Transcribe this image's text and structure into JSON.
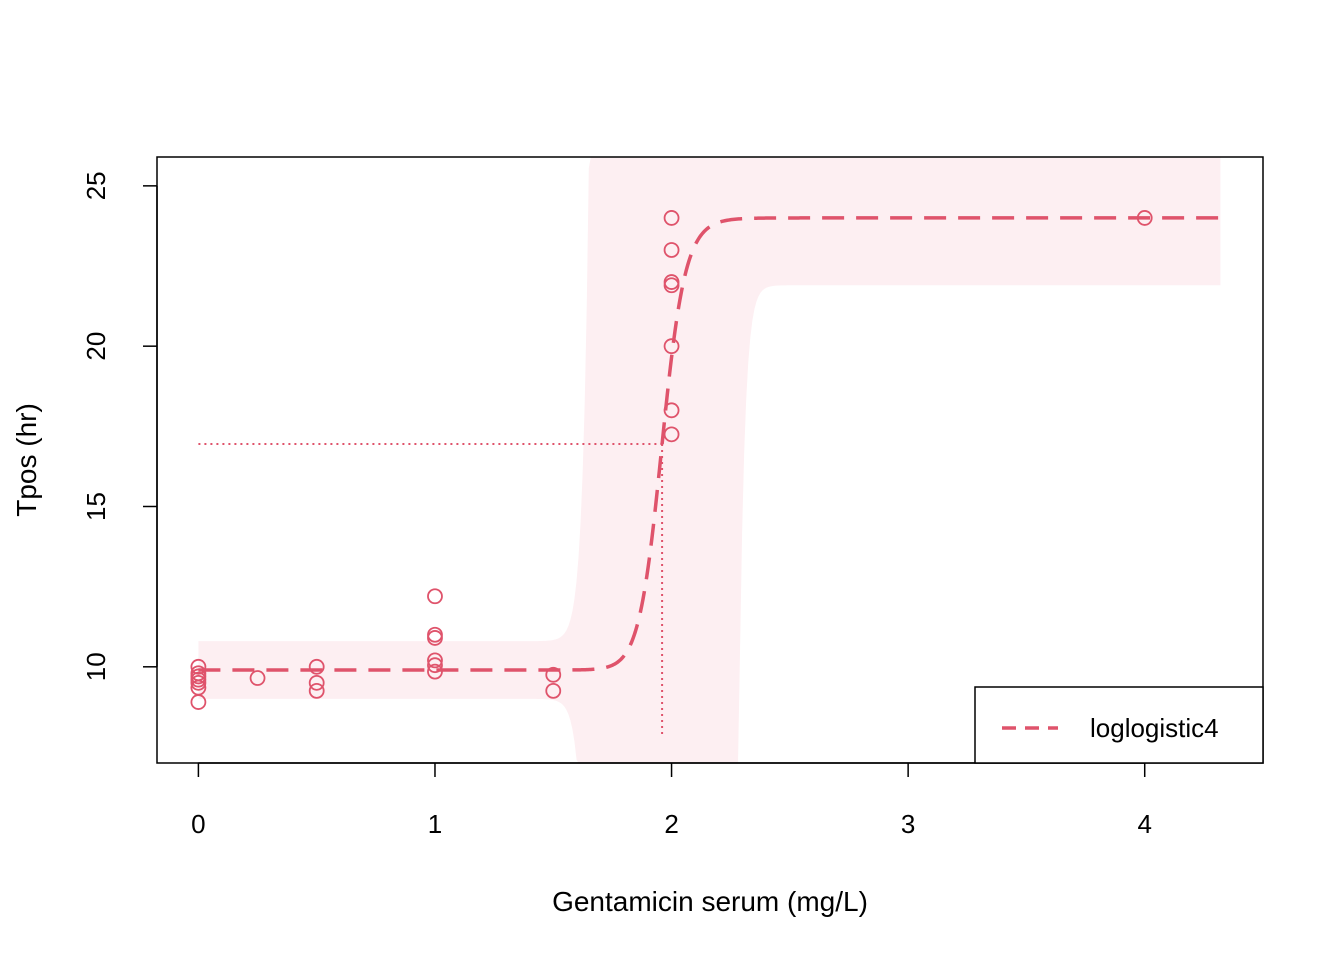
{
  "chart_data": {
    "type": "scatter",
    "title": "",
    "xlabel": "Gentamicin serum (mg/L)",
    "ylabel": "Tpos (hr)",
    "xlim": [
      -0.175,
      4.5
    ],
    "ylim": [
      7.0,
      25.9
    ],
    "x_ticks": [
      0,
      1,
      2,
      3,
      4
    ],
    "y_ticks": [
      10,
      15,
      20,
      25
    ],
    "color": "#DF536B",
    "band_color": "#FDEFF2",
    "points": [
      {
        "x": 0,
        "y": 10.0
      },
      {
        "x": 0,
        "y": 9.8
      },
      {
        "x": 0,
        "y": 9.7
      },
      {
        "x": 0,
        "y": 9.6
      },
      {
        "x": 0,
        "y": 9.5
      },
      {
        "x": 0,
        "y": 9.35
      },
      {
        "x": 0,
        "y": 8.9
      },
      {
        "x": 0.25,
        "y": 9.65
      },
      {
        "x": 0.5,
        "y": 10.0
      },
      {
        "x": 0.5,
        "y": 9.5
      },
      {
        "x": 0.5,
        "y": 9.25
      },
      {
        "x": 1,
        "y": 12.2
      },
      {
        "x": 1,
        "y": 11.0
      },
      {
        "x": 1,
        "y": 10.9
      },
      {
        "x": 1,
        "y": 10.2
      },
      {
        "x": 1,
        "y": 10.05
      },
      {
        "x": 1,
        "y": 9.85
      },
      {
        "x": 1.5,
        "y": 9.75
      },
      {
        "x": 1.5,
        "y": 9.25
      },
      {
        "x": 2,
        "y": 24.0
      },
      {
        "x": 2,
        "y": 23.0
      },
      {
        "x": 2,
        "y": 22.0
      },
      {
        "x": 2,
        "y": 21.9
      },
      {
        "x": 2,
        "y": 20.0
      },
      {
        "x": 2,
        "y": 18.0
      },
      {
        "x": 2,
        "y": 17.25
      },
      {
        "x": 4,
        "y": 24.0
      }
    ],
    "series": [
      {
        "name": "loglogistic4",
        "model": "loglogistic4",
        "params": {
          "lower": 9.9,
          "upper": 24.0,
          "ed50": 1.96,
          "slope": 40
        },
        "x_range": [
          0,
          4.32
        ]
      }
    ],
    "confidence_band": {
      "lower_outer": 9.0,
      "upper_outer": 10.8,
      "upper_inner": 21.9,
      "left_edge_x": 1.755,
      "left_edge_sharpness": 40,
      "right_edge_x": 2.19,
      "right_edge_sharpness": 45
    },
    "reference": {
      "y": 16.95,
      "x": 1.96,
      "x_from": 0,
      "y_from": 7.8
    },
    "legend": {
      "position": "bottom-right",
      "entries": [
        "loglogistic4"
      ]
    }
  }
}
